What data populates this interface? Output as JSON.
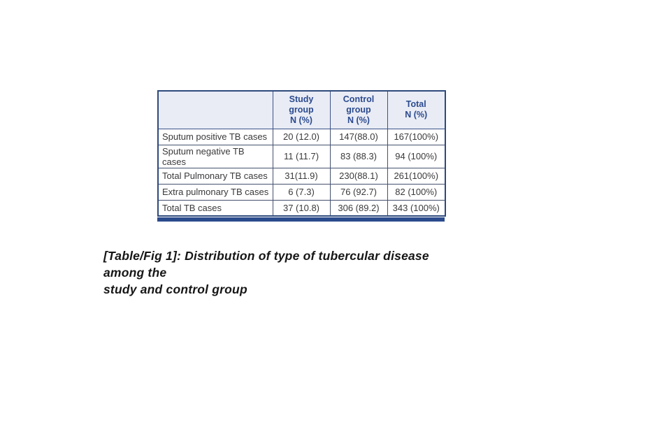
{
  "colors": {
    "header_bg": "#e9ecf5",
    "header_text": "#2b4a8e",
    "outer_border": "#2e4a7c",
    "inner_border": "#44506e",
    "body_text": "#3a3a3c",
    "bottom_bar": "#2b4b8d",
    "caption_text": "#161616",
    "page_bg": "#ffffff"
  },
  "table": {
    "columns": [
      {
        "label": ""
      },
      {
        "label": "Study\ngroup\nN (%)"
      },
      {
        "label": "Control\ngroup\nN (%)"
      },
      {
        "label": "Total\nN (%)"
      }
    ],
    "rows": [
      {
        "label": "Sputum positive TB cases",
        "study": "20 (12.0)",
        "control": "147(88.0)",
        "total": "167(100%)"
      },
      {
        "label": "Sputum negative TB cases",
        "study": "11 (11.7)",
        "control": "83 (88.3)",
        "total": "94 (100%)"
      },
      {
        "label": "Total Pulmonary TB cases",
        "study": "31(11.9)",
        "control": "230(88.1)",
        "total": "261(100%)"
      },
      {
        "label": "Extra pulmonary TB cases",
        "study": "6 (7.3)",
        "control": "76 (92.7)",
        "total": "82 (100%)"
      },
      {
        "label": "Total TB cases",
        "study": "37 (10.8)",
        "control": "306 (89.2)",
        "total": "343 (100%)"
      }
    ]
  },
  "caption": {
    "text": "[Table/Fig 1]: Distribution of type of tubercular disease\namong the\nstudy and control group"
  }
}
